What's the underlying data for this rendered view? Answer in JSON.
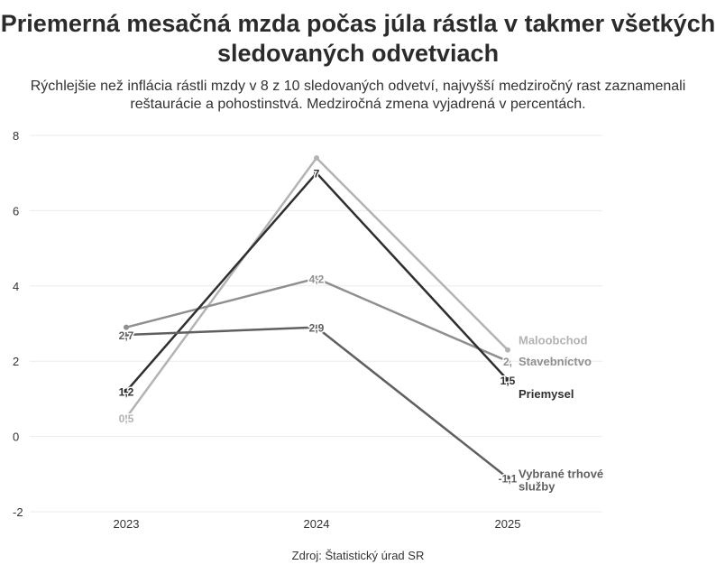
{
  "chart_data": {
    "type": "line",
    "title": "Priemerná mesačná mzda počas júla rástla v takmer všetkých sledovaných odvetviach",
    "subtitle": "Rýchlejšie než inflácia rástli mzdy v 8 z 10 sledovaných odvetví, najvyšší medziročný rast zaznamenali reštaurácie a pohostinstvá. Medziročná zmena vyjadrená v percentách.",
    "source": "Zdroj: Štatistický úrad SR",
    "categories": [
      "2023",
      "2024",
      "2025"
    ],
    "ylim": [
      -2,
      8
    ],
    "yticks": [
      -2,
      0,
      2,
      4,
      6,
      8
    ],
    "grid": true,
    "legend": "end-labels",
    "series": [
      {
        "name": "Maloobchod",
        "values": [
          0.5,
          7.4,
          2.3
        ],
        "labels": [
          "0,5",
          null,
          null
        ],
        "color": "#b3b3b3"
      },
      {
        "name": "Stavebníctvo",
        "values": [
          2.9,
          4.2,
          2.0
        ],
        "labels": [
          null,
          "4,2",
          "2,"
        ],
        "color": "#8f8f8f"
      },
      {
        "name": "Priemysel",
        "values": [
          1.2,
          7.0,
          1.5
        ],
        "labels": [
          "1,2",
          "7",
          "1,5"
        ],
        "color": "#2f2f2f"
      },
      {
        "name": "Vybrané trhové služby",
        "values": [
          2.7,
          2.9,
          -1.1
        ],
        "labels": [
          "2,7",
          "2,9",
          "-1,1"
        ],
        "color": "#606060"
      }
    ]
  }
}
